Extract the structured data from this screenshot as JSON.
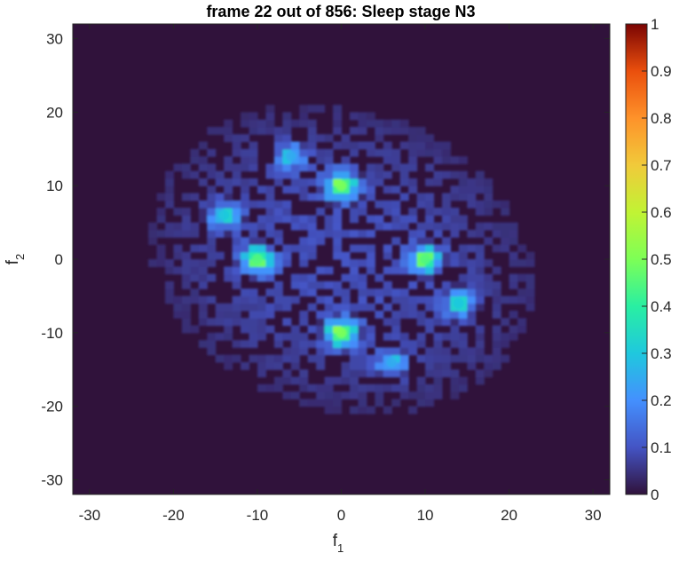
{
  "chart_data": {
    "type": "heatmap",
    "title": "frame 22 out of 856: Sleep stage N3",
    "xlabel_base": "f",
    "xlabel_sub": "1",
    "ylabel_base": "f",
    "ylabel_sub": "2",
    "xlim": [
      -32,
      32
    ],
    "ylim": [
      -32,
      32
    ],
    "xticks": [
      "-30",
      "-20",
      "-10",
      "0",
      "10",
      "20",
      "30"
    ],
    "yticks": [
      "-30",
      "-20",
      "-10",
      "0",
      "10",
      "20",
      "30"
    ],
    "colorbar": {
      "ticks": [
        "0",
        "0.1",
        "0.2",
        "0.3",
        "0.4",
        "0.5",
        "0.6",
        "0.7",
        "0.8",
        "0.9",
        "1"
      ],
      "range": [
        0,
        1
      ],
      "colormap": "turbo"
    },
    "peaks": [
      {
        "f1": 0,
        "f2": 10,
        "value": 0.5
      },
      {
        "f1": 0,
        "f2": -10,
        "value": 0.5
      },
      {
        "f1": 10,
        "f2": 0,
        "value": 0.45
      },
      {
        "f1": -10,
        "f2": 0,
        "value": 0.45
      },
      {
        "f1": -14,
        "f2": 6,
        "value": 0.3
      },
      {
        "f1": 14,
        "f2": -6,
        "value": 0.3
      },
      {
        "f1": -6,
        "f2": 14,
        "value": 0.25
      },
      {
        "f1": 6,
        "f2": -14,
        "value": 0.25
      }
    ]
  },
  "colors": {
    "background_low": "#30123b",
    "axes_border": "#262626"
  }
}
